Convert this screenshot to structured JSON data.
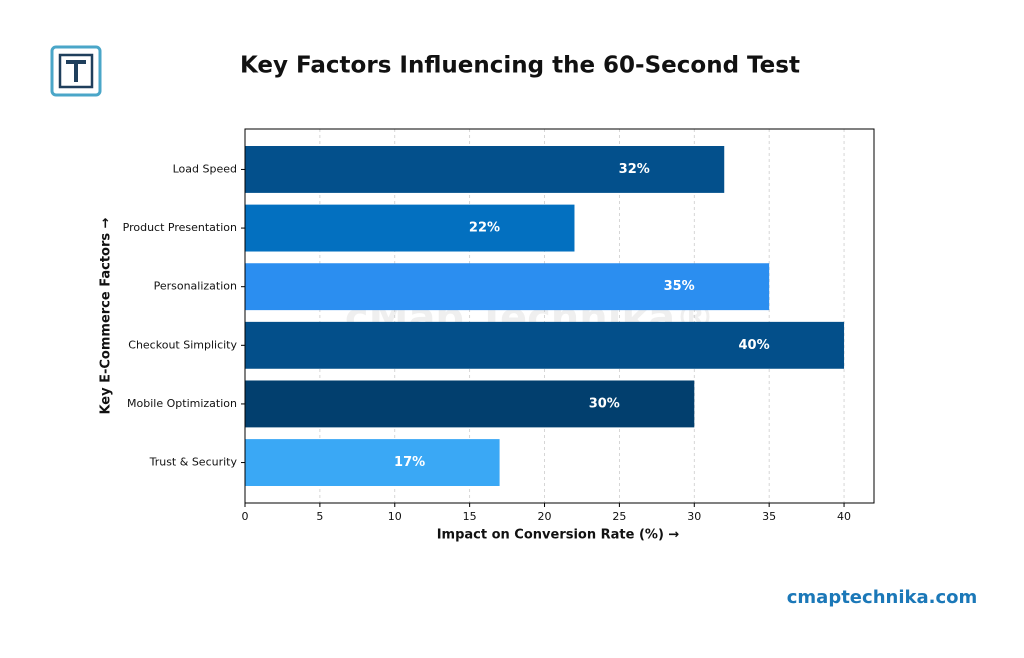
{
  "chart_data": {
    "type": "barh",
    "title": "Key Factors Influencing the 60-Second Test",
    "xlabel": "Impact on Conversion Rate (%) →",
    "ylabel": "Key E-Commerce Factors →",
    "watermark": "cMap Technika®",
    "footer": "cmaptechnika.com",
    "categories": [
      "Load Speed",
      "Product Presentation",
      "Personalization",
      "Checkout Simplicity",
      "Mobile Optimization",
      "Trust & Security"
    ],
    "values": [
      32,
      22,
      35,
      40,
      30,
      17
    ],
    "value_labels": [
      "32%",
      "22%",
      "35%",
      "40%",
      "30%",
      "17%"
    ],
    "colors": [
      "#03508c",
      "#0370c0",
      "#2b8ef0",
      "#034f8a",
      "#023f6e",
      "#3aa8f5"
    ],
    "xlim": [
      0,
      42
    ],
    "xticks": [
      0,
      5,
      10,
      15,
      20,
      25,
      30,
      35,
      40
    ],
    "grid": true
  }
}
